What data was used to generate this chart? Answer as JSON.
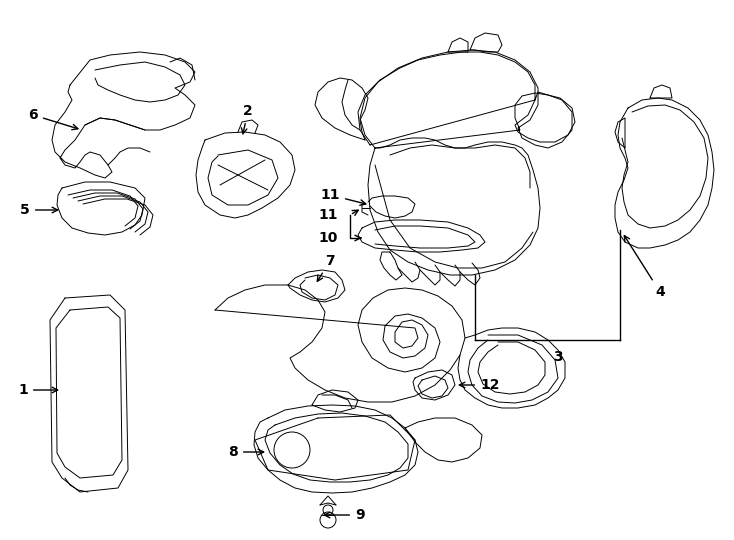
{
  "bg_color": "#ffffff",
  "line_color": "#000000",
  "fig_width": 7.34,
  "fig_height": 5.4,
  "dpi": 100,
  "lw": 0.7
}
